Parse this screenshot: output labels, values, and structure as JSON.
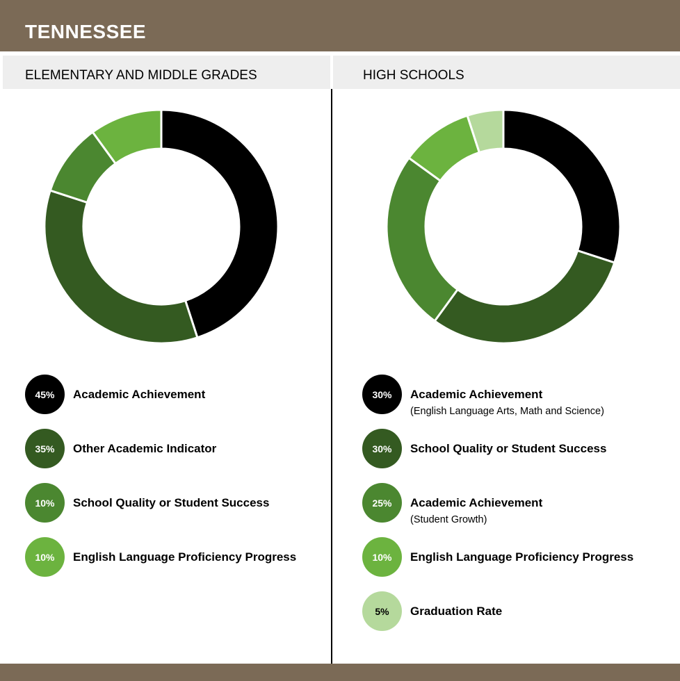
{
  "header": {
    "title": "TENNESSEE"
  },
  "chart_data": [
    {
      "type": "pie",
      "title": "ELEMENTARY AND MIDDLE GRADES",
      "slices": [
        {
          "value": 45,
          "label": "45%",
          "name": "Academic Achievement",
          "sublabel": "",
          "color": "#000000"
        },
        {
          "value": 35,
          "label": "35%",
          "name": "Other Academic Indicator",
          "sublabel": "",
          "color": "#345a21"
        },
        {
          "value": 10,
          "label": "10%",
          "name": "School Quality or Student Success",
          "sublabel": "",
          "color": "#4b8730"
        },
        {
          "value": 10,
          "label": "10%",
          "name": "English Language Proficiency Progress",
          "sublabel": "",
          "color": "#6cb33f"
        }
      ]
    },
    {
      "type": "pie",
      "title": "HIGH SCHOOLS",
      "slices": [
        {
          "value": 30,
          "label": "30%",
          "name": "Academic Achievement",
          "sublabel": "(English Language Arts, Math and Science)",
          "color": "#000000"
        },
        {
          "value": 30,
          "label": "30%",
          "name": "School Quality or Student Success",
          "sublabel": "",
          "color": "#345a21"
        },
        {
          "value": 25,
          "label": "25%",
          "name": "Academic Achievement",
          "sublabel": "(Student Growth)",
          "color": "#4b8730"
        },
        {
          "value": 10,
          "label": "10%",
          "name": "English Language Proficiency Progress",
          "sublabel": "",
          "color": "#6cb33f"
        },
        {
          "value": 5,
          "label": "5%",
          "name": "Graduation Rate",
          "sublabel": "",
          "color": "#b5d99c"
        }
      ]
    }
  ]
}
